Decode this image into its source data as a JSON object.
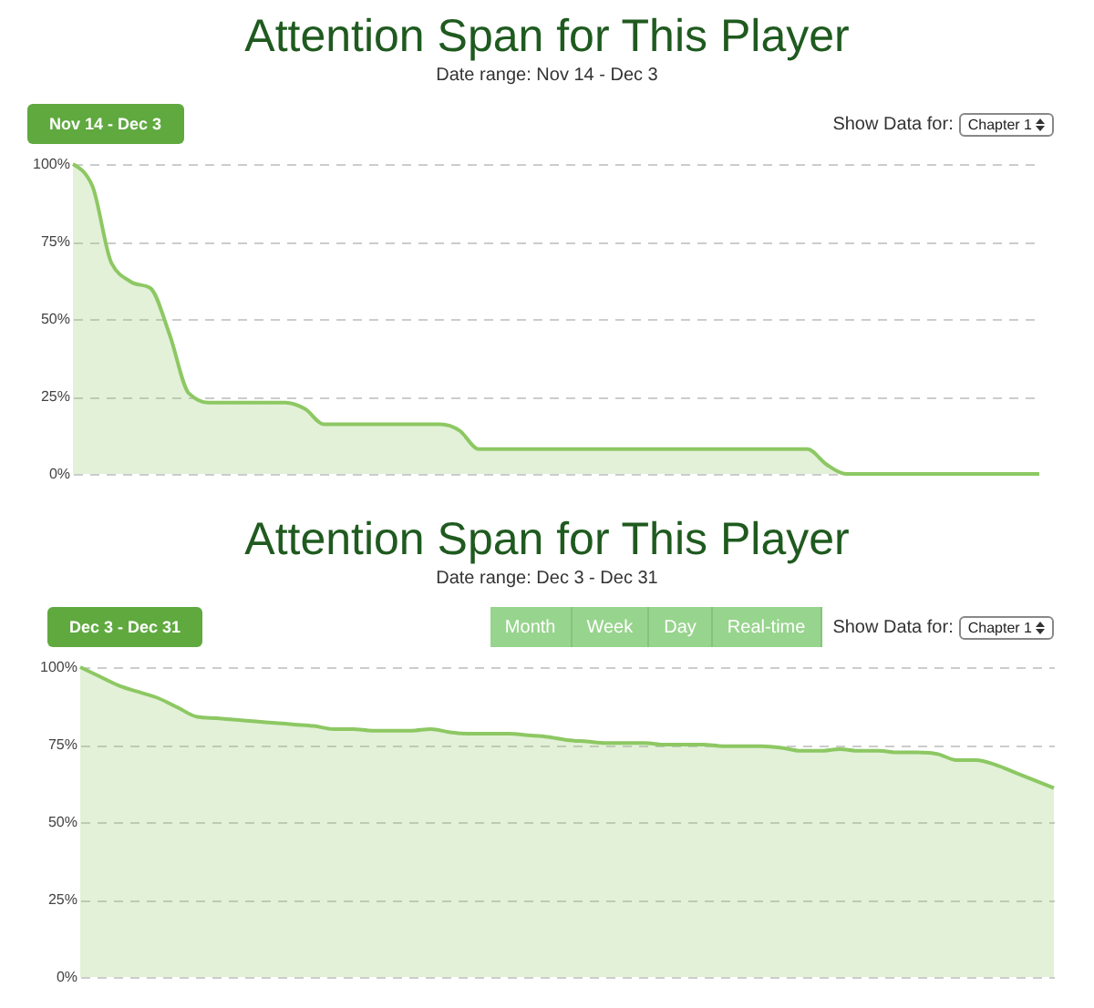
{
  "chart_data": [
    {
      "type": "area",
      "title": "Attention Span for This Player",
      "subtitle": "Date range: Nov 14 - Dec 3",
      "annotations": [
        "Nov 14  -  Dec 3",
        "Show Data for:",
        "Chapter 1"
      ],
      "categories": [
        null,
        null,
        null,
        null,
        null,
        null,
        null,
        null,
        null,
        null,
        null,
        null,
        null,
        null,
        null,
        null,
        null,
        null,
        null,
        null,
        null,
        null,
        null,
        null,
        null,
        null,
        null,
        null,
        null,
        null,
        null,
        null,
        null,
        null,
        null,
        null,
        null,
        null,
        null,
        null,
        null,
        null,
        null,
        null,
        null,
        null,
        null,
        null,
        null,
        null,
        null
      ],
      "series": [
        {
          "color": "#8dc863",
          "values": [
            100,
            93,
            68,
            62,
            60,
            45,
            26,
            23,
            23,
            23,
            23,
            23,
            21,
            16,
            16,
            16,
            16,
            16,
            16,
            16,
            14,
            8,
            8,
            8,
            8,
            8,
            8,
            8,
            8,
            8,
            8,
            8,
            8,
            8,
            8,
            8,
            8,
            8,
            8,
            3,
            0,
            0,
            0,
            0,
            0,
            0,
            0,
            0,
            0,
            0,
            0
          ]
        }
      ],
      "ylim": [
        0,
        100
      ],
      "yticks": [
        {
          "value": 0,
          "label": "0%"
        },
        {
          "value": 25,
          "label": "25%"
        },
        {
          "value": 50,
          "label": "50%"
        },
        {
          "value": 75,
          "label": "75%"
        },
        {
          "value": 100,
          "label": "100%"
        }
      ],
      "grid": "y",
      "tick_labels": "y"
    },
    {
      "type": "area",
      "title": "Attention Span for This Player",
      "subtitle": "Date range: Dec 3 - Dec 31",
      "annotations": [
        "Dec 3  -  Dec 31",
        "Month",
        "Week",
        "Day",
        "Real-time",
        "Show Data for:",
        "Chapter 1"
      ],
      "categories": [
        null,
        null,
        null,
        null,
        null,
        null,
        null,
        null,
        null,
        null,
        null,
        null,
        null,
        null,
        null,
        null,
        null,
        null,
        null,
        null,
        null,
        null,
        null,
        null,
        null,
        null,
        null,
        null,
        null,
        null,
        null,
        null,
        null,
        null,
        null,
        null,
        null,
        null,
        null,
        null,
        null,
        null,
        null,
        null,
        null,
        null,
        null,
        null,
        null,
        null,
        null
      ],
      "series": [
        {
          "color": "#8dc863",
          "values": [
            100,
            97,
            94,
            92,
            90,
            87,
            84,
            83.5,
            83,
            82.5,
            82,
            81.5,
            81,
            80,
            80,
            79.5,
            79.5,
            79.5,
            80,
            79,
            78.5,
            78.5,
            78.5,
            78,
            77.5,
            76.5,
            76,
            75.5,
            75.5,
            75.5,
            75,
            75,
            75,
            74.5,
            74.5,
            74.5,
            74,
            73,
            73,
            73.5,
            73,
            73,
            72.5,
            72.5,
            72,
            70,
            70,
            68.5,
            66,
            63.5,
            61
          ]
        }
      ],
      "ylim": [
        0,
        100
      ],
      "yticks": [
        {
          "value": 0,
          "label": "0%"
        },
        {
          "value": 25,
          "label": "25%"
        },
        {
          "value": 50,
          "label": "50%"
        },
        {
          "value": 75,
          "label": "75%"
        },
        {
          "value": 100,
          "label": "100%"
        }
      ],
      "grid": "y",
      "tick_labels": "y"
    }
  ]
}
